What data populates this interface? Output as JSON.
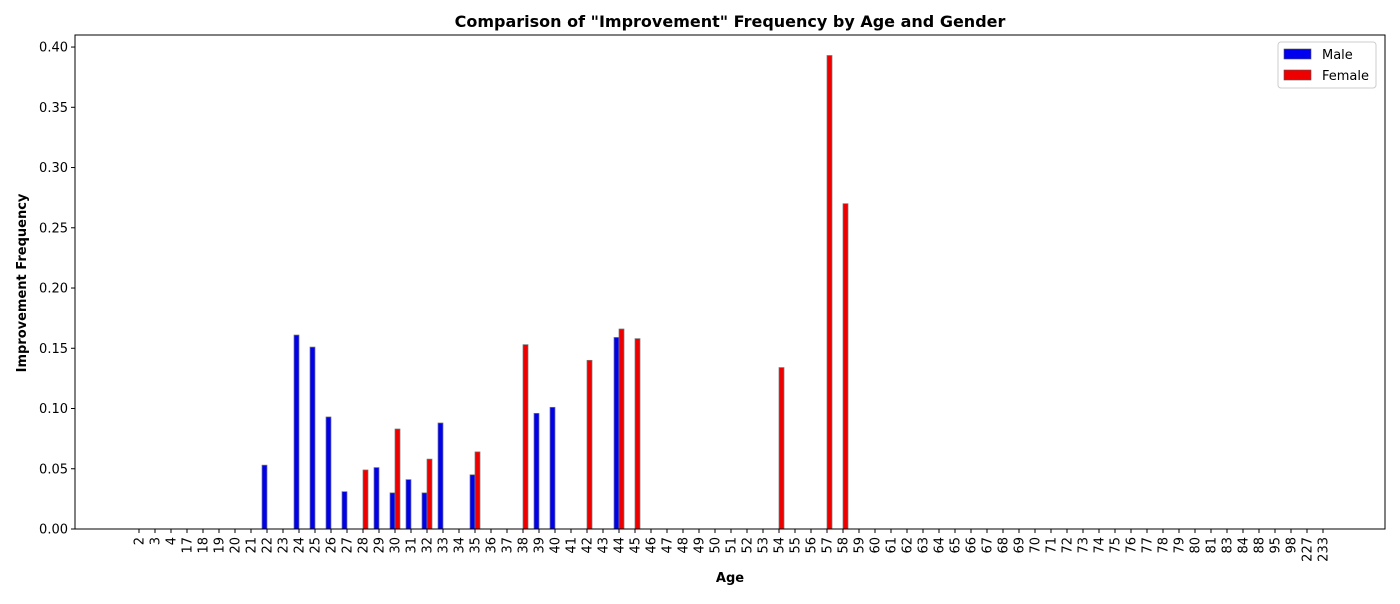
{
  "chart_data": {
    "type": "bar",
    "title": "Comparison of \"Improvement\" Frequency by Age and Gender",
    "xlabel": "Age",
    "ylabel": "Improvement Frequency",
    "ylim": [
      0,
      0.41
    ],
    "yticks": [
      "0.00",
      "0.05",
      "0.10",
      "0.15",
      "0.20",
      "0.25",
      "0.30",
      "0.35",
      "0.40"
    ],
    "grid": false,
    "legend_position": "top-right",
    "categories": [
      "2",
      "3",
      "4",
      "17",
      "18",
      "19",
      "20",
      "21",
      "22",
      "23",
      "24",
      "25",
      "26",
      "27",
      "28",
      "29",
      "30",
      "31",
      "32",
      "33",
      "34",
      "35",
      "36",
      "37",
      "38",
      "39",
      "40",
      "41",
      "42",
      "43",
      "44",
      "45",
      "46",
      "47",
      "48",
      "49",
      "50",
      "51",
      "52",
      "53",
      "54",
      "55",
      "56",
      "57",
      "58",
      "59",
      "60",
      "61",
      "62",
      "63",
      "64",
      "65",
      "66",
      "67",
      "68",
      "69",
      "70",
      "71",
      "72",
      "73",
      "74",
      "75",
      "76",
      "77",
      "78",
      "79",
      "80",
      "81",
      "83",
      "84",
      "88",
      "95",
      "98",
      "227",
      "233"
    ],
    "series": [
      {
        "name": "Male",
        "color": "#0000ee",
        "values": [
          0,
          0,
          0,
          0,
          0,
          0,
          0,
          0,
          0.053,
          0,
          0.161,
          0.151,
          0.093,
          0.031,
          0,
          0.051,
          0.03,
          0.041,
          0.03,
          0.088,
          0,
          0.045,
          0,
          0,
          0,
          0.096,
          0.101,
          0,
          0,
          0,
          0.159,
          0,
          0,
          0,
          0,
          0,
          0,
          0,
          0,
          0,
          0,
          0,
          0,
          0,
          0,
          0,
          0,
          0,
          0,
          0,
          0,
          0,
          0,
          0,
          0,
          0,
          0,
          0,
          0,
          0,
          0,
          0,
          0,
          0,
          0,
          0,
          0,
          0,
          0,
          0,
          0,
          0,
          0,
          0,
          0
        ]
      },
      {
        "name": "Female",
        "color": "#ee0000",
        "values": [
          0,
          0,
          0,
          0,
          0,
          0,
          0,
          0,
          0,
          0,
          0,
          0,
          0,
          0,
          0.049,
          0,
          0.083,
          0,
          0.058,
          0,
          0,
          0.064,
          0,
          0,
          0.153,
          0,
          0,
          0,
          0.14,
          0,
          0.166,
          0.158,
          0,
          0,
          0,
          0,
          0,
          0,
          0,
          0,
          0.134,
          0,
          0,
          0.393,
          0.27,
          0,
          0,
          0,
          0,
          0,
          0,
          0,
          0,
          0,
          0,
          0,
          0,
          0,
          0,
          0,
          0,
          0,
          0,
          0,
          0,
          0,
          0,
          0,
          0,
          0,
          0,
          0,
          0,
          0,
          0
        ]
      }
    ]
  }
}
